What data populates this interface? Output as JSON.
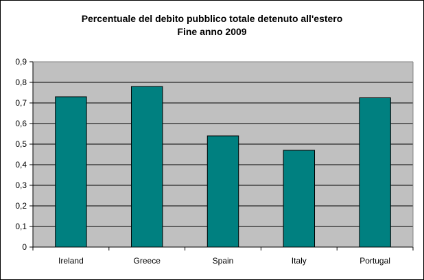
{
  "chart_data": {
    "type": "bar",
    "title": "Percentuale del debito pubblico totale detenuto all'estero",
    "subtitle": "Fine anno 2009",
    "categories": [
      "Ireland",
      "Greece",
      "Spain",
      "Italy",
      "Portugal"
    ],
    "values": [
      0.73,
      0.78,
      0.54,
      0.47,
      0.725
    ],
    "ylim": [
      0,
      0.9
    ],
    "yticks": [
      "0",
      "0,1",
      "0,2",
      "0,3",
      "0,4",
      "0,5",
      "0,6",
      "0,7",
      "0,8",
      "0,9"
    ],
    "xlabel": "",
    "ylabel": "",
    "grid": true,
    "legend": "none",
    "colors": {
      "bar": "#008080",
      "bar_border": "#000000",
      "plot_bg": "#c0c0c0",
      "gridline": "#000000"
    }
  }
}
